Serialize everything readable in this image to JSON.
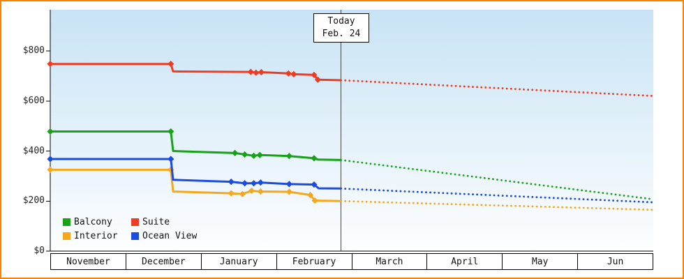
{
  "page": {
    "border_color": "#ff8100",
    "background": "#ffffff"
  },
  "chart_data": {
    "type": "line",
    "x_axis": {
      "months": [
        "November",
        "December",
        "January",
        "February",
        "March",
        "April",
        "May",
        "Jun"
      ],
      "range": [
        0,
        8
      ]
    },
    "y_axis": {
      "ticks": [
        "$0",
        "$200",
        "$400",
        "$600",
        "$800"
      ],
      "tick_values": [
        0,
        200,
        400,
        600,
        800
      ],
      "min": 0,
      "max": 800
    },
    "today": {
      "line1": "Today",
      "line2": "Feb. 24",
      "x": 3.857
    },
    "plot_background": {
      "top": "#c8e3f5",
      "bottom": "#fdfeff"
    },
    "today_line_color": "#444444",
    "series": [
      {
        "name": "Interior",
        "color": "#f6a81c",
        "points": [
          [
            0,
            325,
            1
          ],
          [
            1.6,
            325,
            1
          ],
          [
            1.63,
            238,
            0
          ],
          [
            2.4,
            231,
            1
          ],
          [
            2.55,
            228,
            1
          ],
          [
            2.67,
            241,
            1
          ],
          [
            2.79,
            238,
            1
          ],
          [
            3.17,
            237,
            1
          ],
          [
            3.45,
            224,
            1
          ],
          [
            3.51,
            202,
            1
          ],
          [
            3.857,
            200,
            0
          ]
        ],
        "forecast_end": [
          8,
          165
        ]
      },
      {
        "name": "Ocean View",
        "color": "#1c4be0",
        "points": [
          [
            0,
            368,
            1
          ],
          [
            1.6,
            368,
            1
          ],
          [
            1.63,
            285,
            0
          ],
          [
            2.4,
            277,
            1
          ],
          [
            2.58,
            271,
            1
          ],
          [
            2.7,
            271,
            1
          ],
          [
            2.79,
            274,
            1
          ],
          [
            3.17,
            268,
            1
          ],
          [
            3.5,
            266,
            1
          ],
          [
            3.56,
            251,
            0
          ],
          [
            3.857,
            250,
            0
          ]
        ],
        "forecast_end": [
          8,
          195
        ]
      },
      {
        "name": "Balcony",
        "color": "#17a317",
        "points": [
          [
            0,
            478,
            1
          ],
          [
            1.6,
            478,
            1
          ],
          [
            1.63,
            400,
            0
          ],
          [
            2.45,
            392,
            1
          ],
          [
            2.58,
            386,
            1
          ],
          [
            2.7,
            381,
            1
          ],
          [
            2.78,
            384,
            1
          ],
          [
            3.17,
            380,
            1
          ],
          [
            3.5,
            371,
            1
          ],
          [
            3.55,
            366,
            0
          ],
          [
            3.857,
            364,
            0
          ]
        ],
        "forecast_end": [
          8,
          207
        ]
      },
      {
        "name": "Suite",
        "color": "#ee3b23",
        "points": [
          [
            0,
            748,
            1
          ],
          [
            1.6,
            748,
            1
          ],
          [
            1.63,
            718,
            0
          ],
          [
            2.66,
            716,
            1
          ],
          [
            2.73,
            713,
            1
          ],
          [
            2.8,
            715,
            1
          ],
          [
            3.16,
            710,
            1
          ],
          [
            3.23,
            707,
            1
          ],
          [
            3.5,
            704,
            1
          ],
          [
            3.55,
            685,
            1
          ],
          [
            3.857,
            683,
            0
          ]
        ],
        "forecast_end": [
          8,
          620
        ]
      }
    ],
    "legend": [
      {
        "label": "Balcony",
        "color": "#17a317"
      },
      {
        "label": "Suite",
        "color": "#ee3b23"
      },
      {
        "label": "Interior",
        "color": "#f6a81c"
      },
      {
        "label": "Ocean View",
        "color": "#1c4be0"
      }
    ]
  }
}
